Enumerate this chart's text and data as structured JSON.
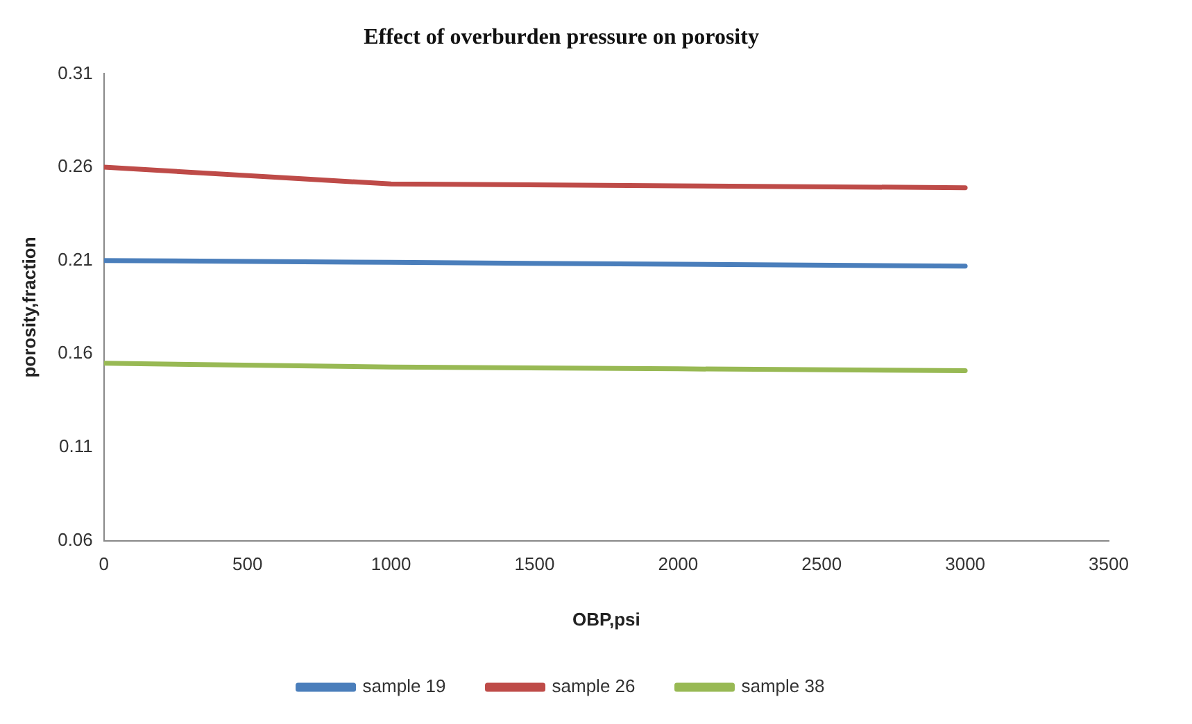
{
  "chart_data": {
    "type": "line",
    "title": "Effect of overburden pressure on porosity",
    "xlabel": "OBP,psi",
    "ylabel": "porosity,fraction",
    "x": [
      0,
      1000,
      2000,
      3000
    ],
    "series": [
      {
        "name": "sample 19",
        "color": "#4a7ebb",
        "values": [
          0.21,
          0.209,
          0.208,
          0.207
        ]
      },
      {
        "name": "sample 26",
        "color": "#be4b48",
        "values": [
          0.26,
          0.251,
          0.25,
          0.249
        ]
      },
      {
        "name": "sample 38",
        "color": "#98b954",
        "values": [
          0.155,
          0.153,
          0.152,
          0.151
        ]
      }
    ],
    "xlim": [
      0,
      3500
    ],
    "xticks": [
      0,
      500,
      1000,
      1500,
      2000,
      2500,
      3000,
      3500
    ],
    "ylim": [
      0.06,
      0.31
    ],
    "yticks": [
      0.06,
      0.11,
      0.16,
      0.21,
      0.26,
      0.31
    ],
    "grid": false,
    "legend": "bottom",
    "marker": "none",
    "line_style": "solid"
  }
}
